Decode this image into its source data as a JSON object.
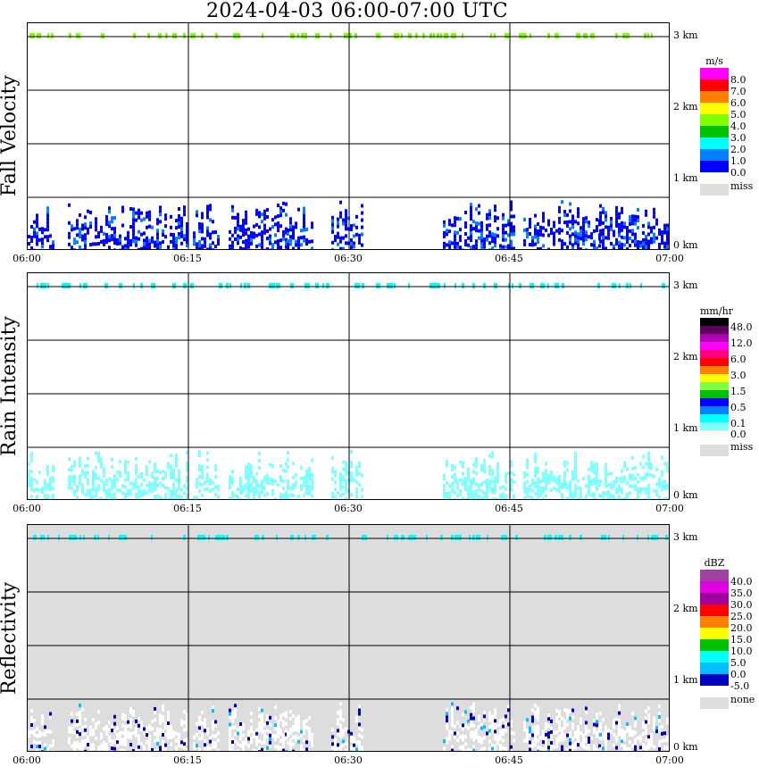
{
  "title": "2024-04-03  06:00-07:00 UTC",
  "x_ticks": [
    "06:00",
    "06:15",
    "06:30",
    "06:45",
    "07:00"
  ],
  "km_labels": [
    "3 km",
    "2 km",
    "1 km",
    "0 km"
  ],
  "chart_data": [
    {
      "type": "heatmap",
      "title": "Fall Velocity",
      "ylabel": "Fall Velocity",
      "xlabel": "UTC",
      "xlim": [
        "06:00",
        "07:00"
      ],
      "ylim_km": [
        0,
        3
      ],
      "colorbar": {
        "unit": "m/s",
        "labels": [
          "8.0",
          "7.0",
          "6.0",
          "5.0",
          "4.0",
          "3.0",
          "2.0",
          "1.0",
          "0.0"
        ],
        "colors": [
          "#ff00ff",
          "#ff0000",
          "#ff8000",
          "#ffff00",
          "#80ff00",
          "#00c000",
          "#00ffff",
          "#0080ff",
          "#0000ff"
        ],
        "miss_label": "miss",
        "miss_color": "#dddddd"
      },
      "background": "#ffffff",
      "dominant_color": "#0000ff",
      "band_color": "#80ff00"
    },
    {
      "type": "heatmap",
      "title": "Rain Intensity",
      "ylabel": "Rain Intensity",
      "xlabel": "UTC",
      "xlim": [
        "06:00",
        "07:00"
      ],
      "ylim_km": [
        0,
        3
      ],
      "colorbar": {
        "unit": "mm/hr",
        "labels": [
          "48.0",
          "12.0",
          "6.0",
          "3.0",
          "1.5",
          "0.5",
          "0.1",
          "0.0"
        ],
        "colors": [
          "#000000",
          "#600060",
          "#b000b0",
          "#ff00ff",
          "#ff0080",
          "#ff0000",
          "#ff8000",
          "#ffff00",
          "#80ff40",
          "#00c000",
          "#0000ff",
          "#0080ff",
          "#00ffff",
          "#80ffff"
        ],
        "miss_label": "miss",
        "miss_color": "#dddddd"
      },
      "background": "#ffffff",
      "dominant_color": "#80ffff",
      "band_color": "#00ffff"
    },
    {
      "type": "heatmap",
      "title": "Reflectivity",
      "ylabel": "Reflectivity",
      "xlabel": "UTC",
      "xlim": [
        "06:00",
        "07:00"
      ],
      "ylim_km": [
        0,
        3
      ],
      "colorbar": {
        "unit": "dBZ",
        "labels": [
          "40.0",
          "35.0",
          "30.0",
          "25.0",
          "20.0",
          "15.0",
          "10.0",
          "5.0",
          "0.0",
          "-5.0"
        ],
        "colors": [
          "#a040a0",
          "#e000e0",
          "#a000a0",
          "#ff0000",
          "#ff8000",
          "#ffff00",
          "#00c000",
          "#00ffff",
          "#00c0ff",
          "#0000c0"
        ],
        "miss_label": "none",
        "miss_color": "#dddddd"
      },
      "background": "#dddddd",
      "dominant_color": "#ffffff",
      "band_color": "#00ffff"
    }
  ]
}
